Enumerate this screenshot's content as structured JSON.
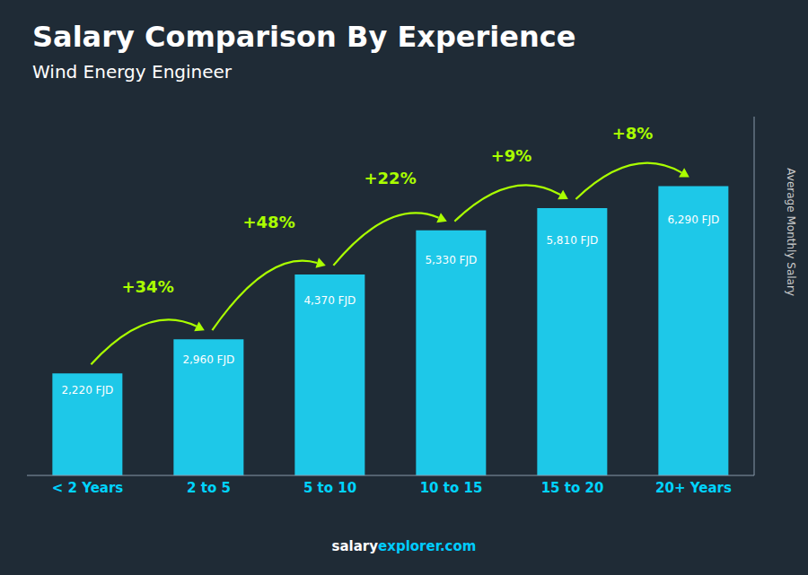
{
  "chart_data": {
    "type": "bar",
    "title": "Salary Comparison By Experience",
    "subtitle": "Wind Energy Engineer",
    "ylabel": "Average Monthly Salary",
    "categories": [
      "< 2 Years",
      "2 to 5",
      "5 to 10",
      "10 to 15",
      "15 to 20",
      "20+ Years"
    ],
    "values": [
      2220,
      2960,
      4370,
      5330,
      5810,
      6290
    ],
    "value_labels": [
      "2,220 FJD",
      "2,960 FJD",
      "4,370 FJD",
      "5,330 FJD",
      "5,810 FJD",
      "6,290 FJD"
    ],
    "data_labels": true,
    "annotations": [
      "+34%",
      "+48%",
      "+22%",
      "+9%",
      "+8%"
    ],
    "footer": [
      "salary",
      "explorer.com"
    ],
    "color": "#1ec8e8",
    "ylim": [
      0,
      7800
    ],
    "grid": false,
    "tick_labels": "x"
  }
}
